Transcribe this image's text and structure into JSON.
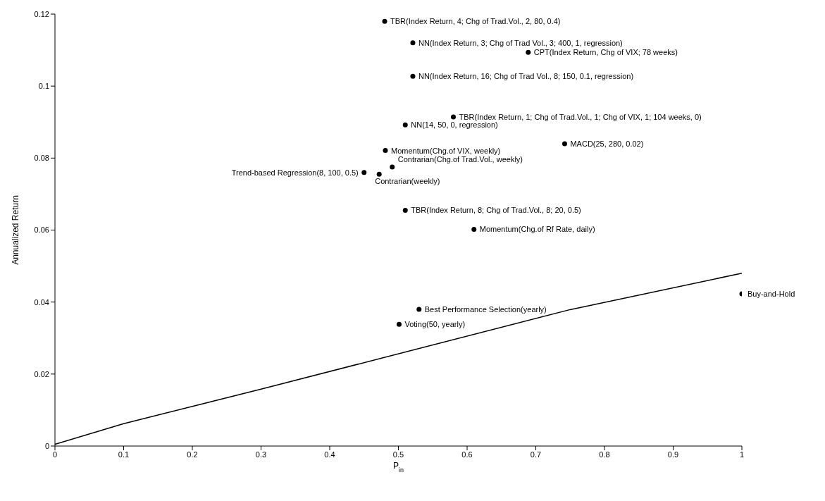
{
  "chart_data": {
    "type": "scatter",
    "xlabel": "P$_{in}$",
    "ylabel": "Annualized Return",
    "xlim": [
      0,
      1
    ],
    "xticks": [
      0,
      0.1,
      0.2,
      0.3,
      0.4,
      0.5,
      0.6,
      0.7,
      0.8,
      0.9,
      1
    ],
    "ylim": [
      0,
      0.12
    ],
    "yticks": [
      0,
      0.02,
      0.04,
      0.06,
      0.08,
      0.1,
      0.12
    ],
    "grid": false,
    "marker": "circle",
    "series": [
      {
        "color": "#000000",
        "x": [
          0.48,
          0.521,
          0.689,
          0.521,
          0.58,
          0.51,
          0.742,
          0.481,
          0.491,
          0.45,
          0.472,
          0.51,
          0.61,
          0.53,
          0.501,
          1.0
        ],
        "values": [
          0.118,
          0.112,
          0.1094,
          0.1027,
          0.0914,
          0.0892,
          0.084,
          0.0821,
          0.0775,
          0.076,
          0.0755,
          0.0655,
          0.0602,
          0.038,
          0.0338,
          0.0423
        ]
      },
      {
        "type": "line",
        "color": "#000000",
        "marker": "none",
        "line_style": "solid",
        "x": [
          0,
          0.1,
          0.2,
          0.3,
          0.75,
          1
        ],
        "values": [
          0.0005,
          0.0062,
          0.011,
          0.0158,
          0.0379,
          0.048
        ]
      }
    ],
    "annotations": [
      {
        "text": "TBR(Index Return, 4; Chg of Trad.Vol., 2, 80, 0.4)",
        "x": 0.48,
        "y": 0.118
      },
      {
        "text": "NN(Index Return, 3; Chg of Trad  Vol., 3; 400, 1, regression)",
        "x": 0.521,
        "y": 0.112
      },
      {
        "text": "CPT(Index Return, Chg of VIX; 78 weeks)",
        "x": 0.689,
        "y": 0.1094
      },
      {
        "text": "NN(Index Return, 16; Chg of Trad Vol., 8; 150, 0.1, regression)",
        "x": 0.521,
        "y": 0.1027
      },
      {
        "text": "TBR(Index Return, 1; Chg of Trad.Vol., 1; Chg of VIX, 1; 104 weeks, 0)",
        "x": 0.58,
        "y": 0.0914
      },
      {
        "text": "NN(14, 50, 0, regression)",
        "x": 0.51,
        "y": 0.0892
      },
      {
        "text": "MACD(25, 280, 0.02)",
        "x": 0.742,
        "y": 0.084
      },
      {
        "text": "Momentum(Chg.of VIX, weekly)",
        "x": 0.481,
        "y": 0.0821
      },
      {
        "text": "Contrarian(Chg.of Trad.Vol., weekly)",
        "x": 0.491,
        "y": 0.0775
      },
      {
        "text": "Trend-based Regression(8, 100, 0.5)",
        "x": 0.45,
        "y": 0.076
      },
      {
        "text": "Contrarian(weekly)",
        "x": 0.472,
        "y": 0.0755
      },
      {
        "text": "TBR(Index Return, 8; Chg of Trad.Vol., 8;  20, 0.5)",
        "x": 0.51,
        "y": 0.0655
      },
      {
        "text": "Momentum(Chg.of Rf Rate, daily)",
        "x": 0.61,
        "y": 0.0602
      },
      {
        "text": "Best Performance Selection(yearly)",
        "x": 0.53,
        "y": 0.038
      },
      {
        "text": "Voting(50, yearly)",
        "x": 0.501,
        "y": 0.0338
      },
      {
        "text": "Buy-and-Hold",
        "x": 1.0,
        "y": 0.0423
      }
    ]
  }
}
